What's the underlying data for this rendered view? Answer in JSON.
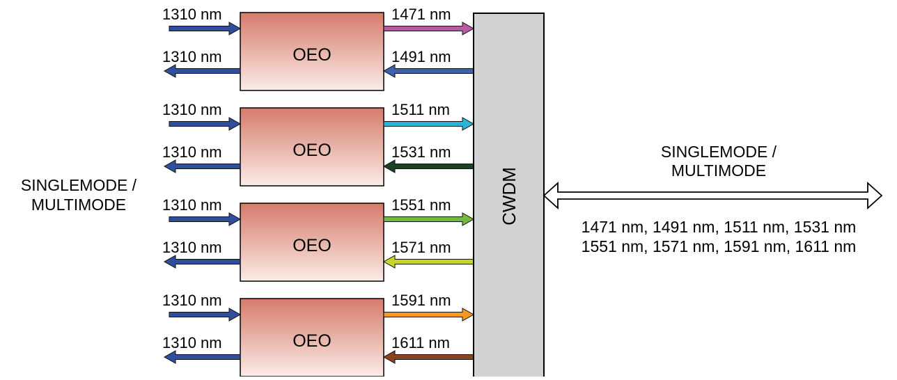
{
  "left_label": [
    "SINGLEMODE /",
    "MULTIMODE"
  ],
  "right_label": [
    "SINGLEMODE /",
    "MULTIMODE"
  ],
  "cwdm_label": "CWDM",
  "wavelength_list": [
    "1471 nm, 1491 nm, 1511 nm, 1531 nm",
    "1551 nm, 1571 nm, 1591 nm, 1611 nm"
  ],
  "modules": [
    {
      "label": "OEO",
      "client_in": "1310 nm",
      "client_out": "1310 nm",
      "tx": "1471 nm",
      "tx_color": "#b65ba4",
      "rx": "1491 nm",
      "rx_color": "#3e62aa"
    },
    {
      "label": "OEO",
      "client_in": "1310 nm",
      "client_out": "1310 nm",
      "tx": "1511 nm",
      "tx_color": "#29b5d8",
      "rx": "1531 nm",
      "rx_color": "#1b4223"
    },
    {
      "label": "OEO",
      "client_in": "1310 nm",
      "client_out": "1310 nm",
      "tx": "1551 nm",
      "tx_color": "#75b842",
      "rx": "1571 nm",
      "rx_color": "#c7d62d"
    },
    {
      "label": "OEO",
      "client_in": "1310 nm",
      "client_out": "1310 nm",
      "tx": "1591 nm",
      "tx_color": "#f39a24",
      "rx": "1611 nm",
      "rx_color": "#8b4420"
    }
  ],
  "colors": {
    "client_arrow": "#2f4f9e",
    "box_top": "#d57b6b",
    "box_bottom": "#fbece6",
    "cwdm_fill": "#d1d2d4"
  }
}
